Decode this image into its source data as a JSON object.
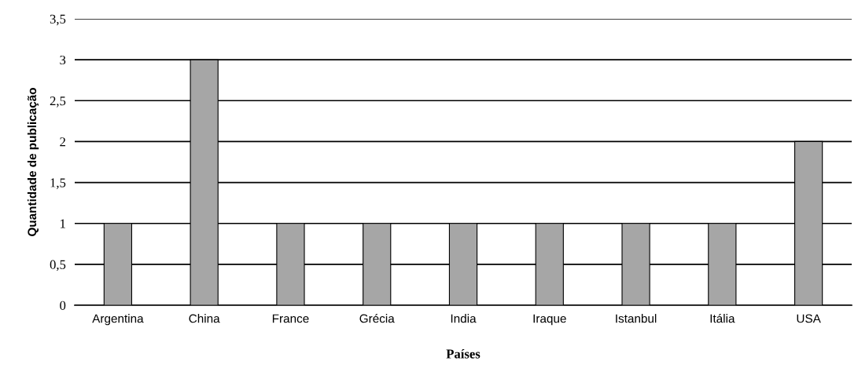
{
  "chart_data": {
    "type": "bar",
    "xlabel": "Países",
    "ylabel": "Quantidade de publicação",
    "categories": [
      "Argentina",
      "China",
      "France",
      "Grécia",
      "India",
      "Iraque",
      "Istanbul",
      "Itália",
      "USA"
    ],
    "values": [
      1,
      3,
      1,
      1,
      1,
      1,
      1,
      1,
      2
    ],
    "color": "#a6a6a6",
    "ylim": [
      0,
      3.5
    ],
    "yticks": [
      0,
      {
        "value": 0.5,
        "label": "0,5"
      },
      1,
      {
        "value": 1.5,
        "label": "1,5"
      },
      2,
      {
        "value": 2.5,
        "label": "2,5"
      },
      3,
      {
        "value": 3.5,
        "label": "3,5"
      }
    ],
    "grid": "y"
  }
}
